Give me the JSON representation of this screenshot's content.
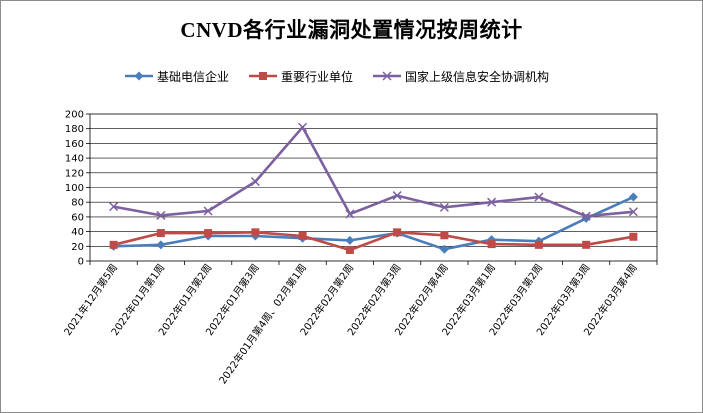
{
  "chart_data": {
    "type": "line",
    "title": "CNVD各行业漏洞处置情况按周统计",
    "xlabel": "",
    "ylabel": "",
    "ylim": [
      0,
      200
    ],
    "yticks": [
      0,
      20,
      40,
      60,
      80,
      100,
      120,
      140,
      160,
      180,
      200
    ],
    "grid": true,
    "legend_position": "top",
    "categories": [
      "2021年12月第5周",
      "2022年01月第1周",
      "2022年01月第2周",
      "2022年01月第3周",
      "2022年01月第4周、02月第1周",
      "2022年02月第2周",
      "2022年02月第3周",
      "2022年02月第4周",
      "2022年03月第1周",
      "2022年03月第2周",
      "2022年03月第3周",
      "2022年03月第4周"
    ],
    "series": [
      {
        "name": "基础电信企业",
        "color": "#4a7ebb",
        "marker": "diamond",
        "values": [
          20,
          22,
          34,
          34,
          31,
          28,
          38,
          16,
          29,
          27,
          58,
          87
        ]
      },
      {
        "name": "重要行业单位",
        "color": "#be4b48",
        "marker": "square",
        "values": [
          22,
          38,
          38,
          39,
          34,
          15,
          39,
          35,
          23,
          22,
          22,
          33
        ]
      },
      {
        "name": "国家上级信息安全协调机构",
        "color": "#7d60a0",
        "marker": "x",
        "values": [
          74,
          62,
          68,
          108,
          182,
          64,
          89,
          73,
          80,
          87,
          61,
          67
        ]
      }
    ]
  }
}
